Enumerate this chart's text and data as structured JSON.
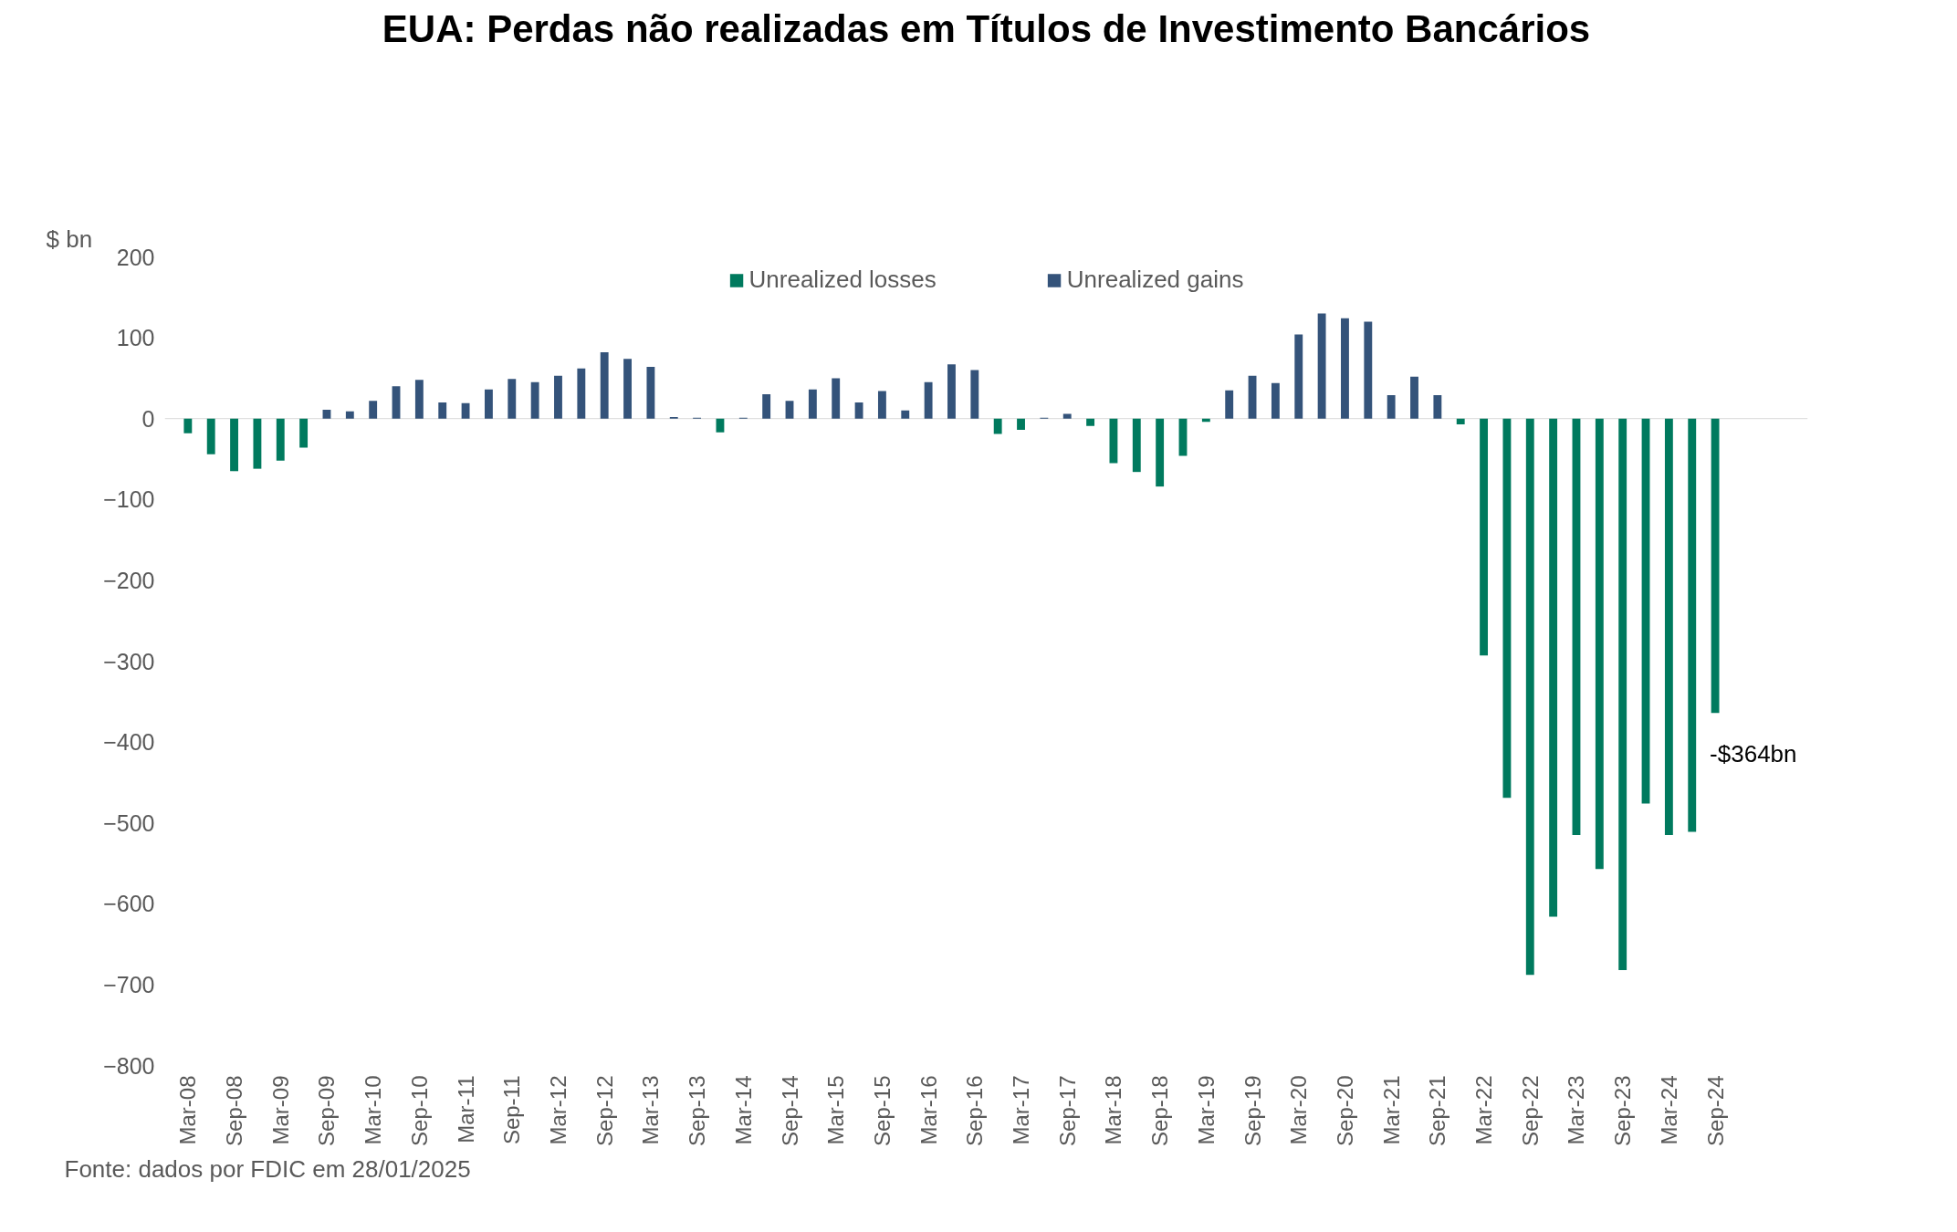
{
  "chart_data": {
    "type": "bar",
    "title": "EUA: Perdas não realizadas em Títulos de Investimento Bancários",
    "ylabel": "$ bn",
    "categories": [
      "Mar-08",
      null,
      "Sep-08",
      null,
      "Mar-09",
      null,
      "Sep-09",
      null,
      "Mar-10",
      null,
      "Sep-10",
      null,
      "Mar-11",
      null,
      "Sep-11",
      null,
      "Mar-12",
      null,
      "Sep-12",
      null,
      "Mar-13",
      null,
      "Sep-13",
      null,
      "Mar-14",
      null,
      "Sep-14",
      null,
      "Mar-15",
      null,
      "Sep-15",
      null,
      "Mar-16",
      null,
      "Sep-16",
      null,
      "Mar-17",
      null,
      "Sep-17",
      null,
      "Mar-18",
      null,
      "Sep-18",
      null,
      "Mar-19",
      null,
      "Sep-19",
      null,
      "Mar-20",
      null,
      "Sep-20",
      null,
      "Mar-21",
      null,
      "Sep-21",
      null,
      "Mar-22",
      null,
      "Sep-22",
      null,
      "Mar-23",
      null,
      "Sep-23",
      null,
      "Mar-24",
      null,
      "Sep-24"
    ],
    "series": [
      {
        "name": "Unrealized losses",
        "color": "#007a5e",
        "values": [
          -18,
          -44,
          -65,
          -62,
          -52,
          -36,
          null,
          null,
          null,
          null,
          null,
          null,
          null,
          null,
          null,
          null,
          null,
          null,
          null,
          null,
          null,
          null,
          null,
          -17,
          null,
          null,
          null,
          null,
          null,
          null,
          null,
          null,
          null,
          null,
          null,
          -19,
          -14,
          null,
          null,
          -9,
          -55,
          -66,
          -84,
          -46,
          -4,
          null,
          null,
          null,
          null,
          null,
          null,
          null,
          null,
          null,
          null,
          -7,
          -293,
          -469,
          -688,
          -616,
          -515,
          -557,
          -682,
          -476,
          -515,
          -511,
          -364
        ]
      },
      {
        "name": "Unrealized gains",
        "color": "#34537a",
        "values": [
          null,
          null,
          null,
          null,
          null,
          null,
          11,
          9,
          22,
          40,
          48,
          20,
          19,
          36,
          49,
          45,
          53,
          62,
          82,
          74,
          64,
          2,
          1,
          null,
          1,
          30,
          22,
          36,
          50,
          20,
          34,
          10,
          45,
          67,
          60,
          null,
          null,
          1,
          6,
          null,
          null,
          null,
          null,
          null,
          null,
          35,
          53,
          44,
          104,
          130,
          124,
          120,
          29,
          52,
          29,
          null,
          null,
          null,
          null,
          null,
          null,
          null,
          null,
          null,
          null,
          null,
          null
        ]
      }
    ],
    "ylim": [
      -800,
      200
    ],
    "yticks": [
      -800,
      -700,
      -600,
      -500,
      -400,
      -300,
      -200,
      -100,
      0,
      100,
      200
    ],
    "grid": false,
    "legend": "top",
    "ref_lines": [
      {
        "axis": "y",
        "value": 0,
        "color": "#d9d9d9"
      }
    ],
    "annotations": [
      {
        "text": "-$364bn",
        "x": "Sep-24",
        "y": -364
      },
      "Fonte: dados por FDIC em 28/01/2025"
    ]
  }
}
